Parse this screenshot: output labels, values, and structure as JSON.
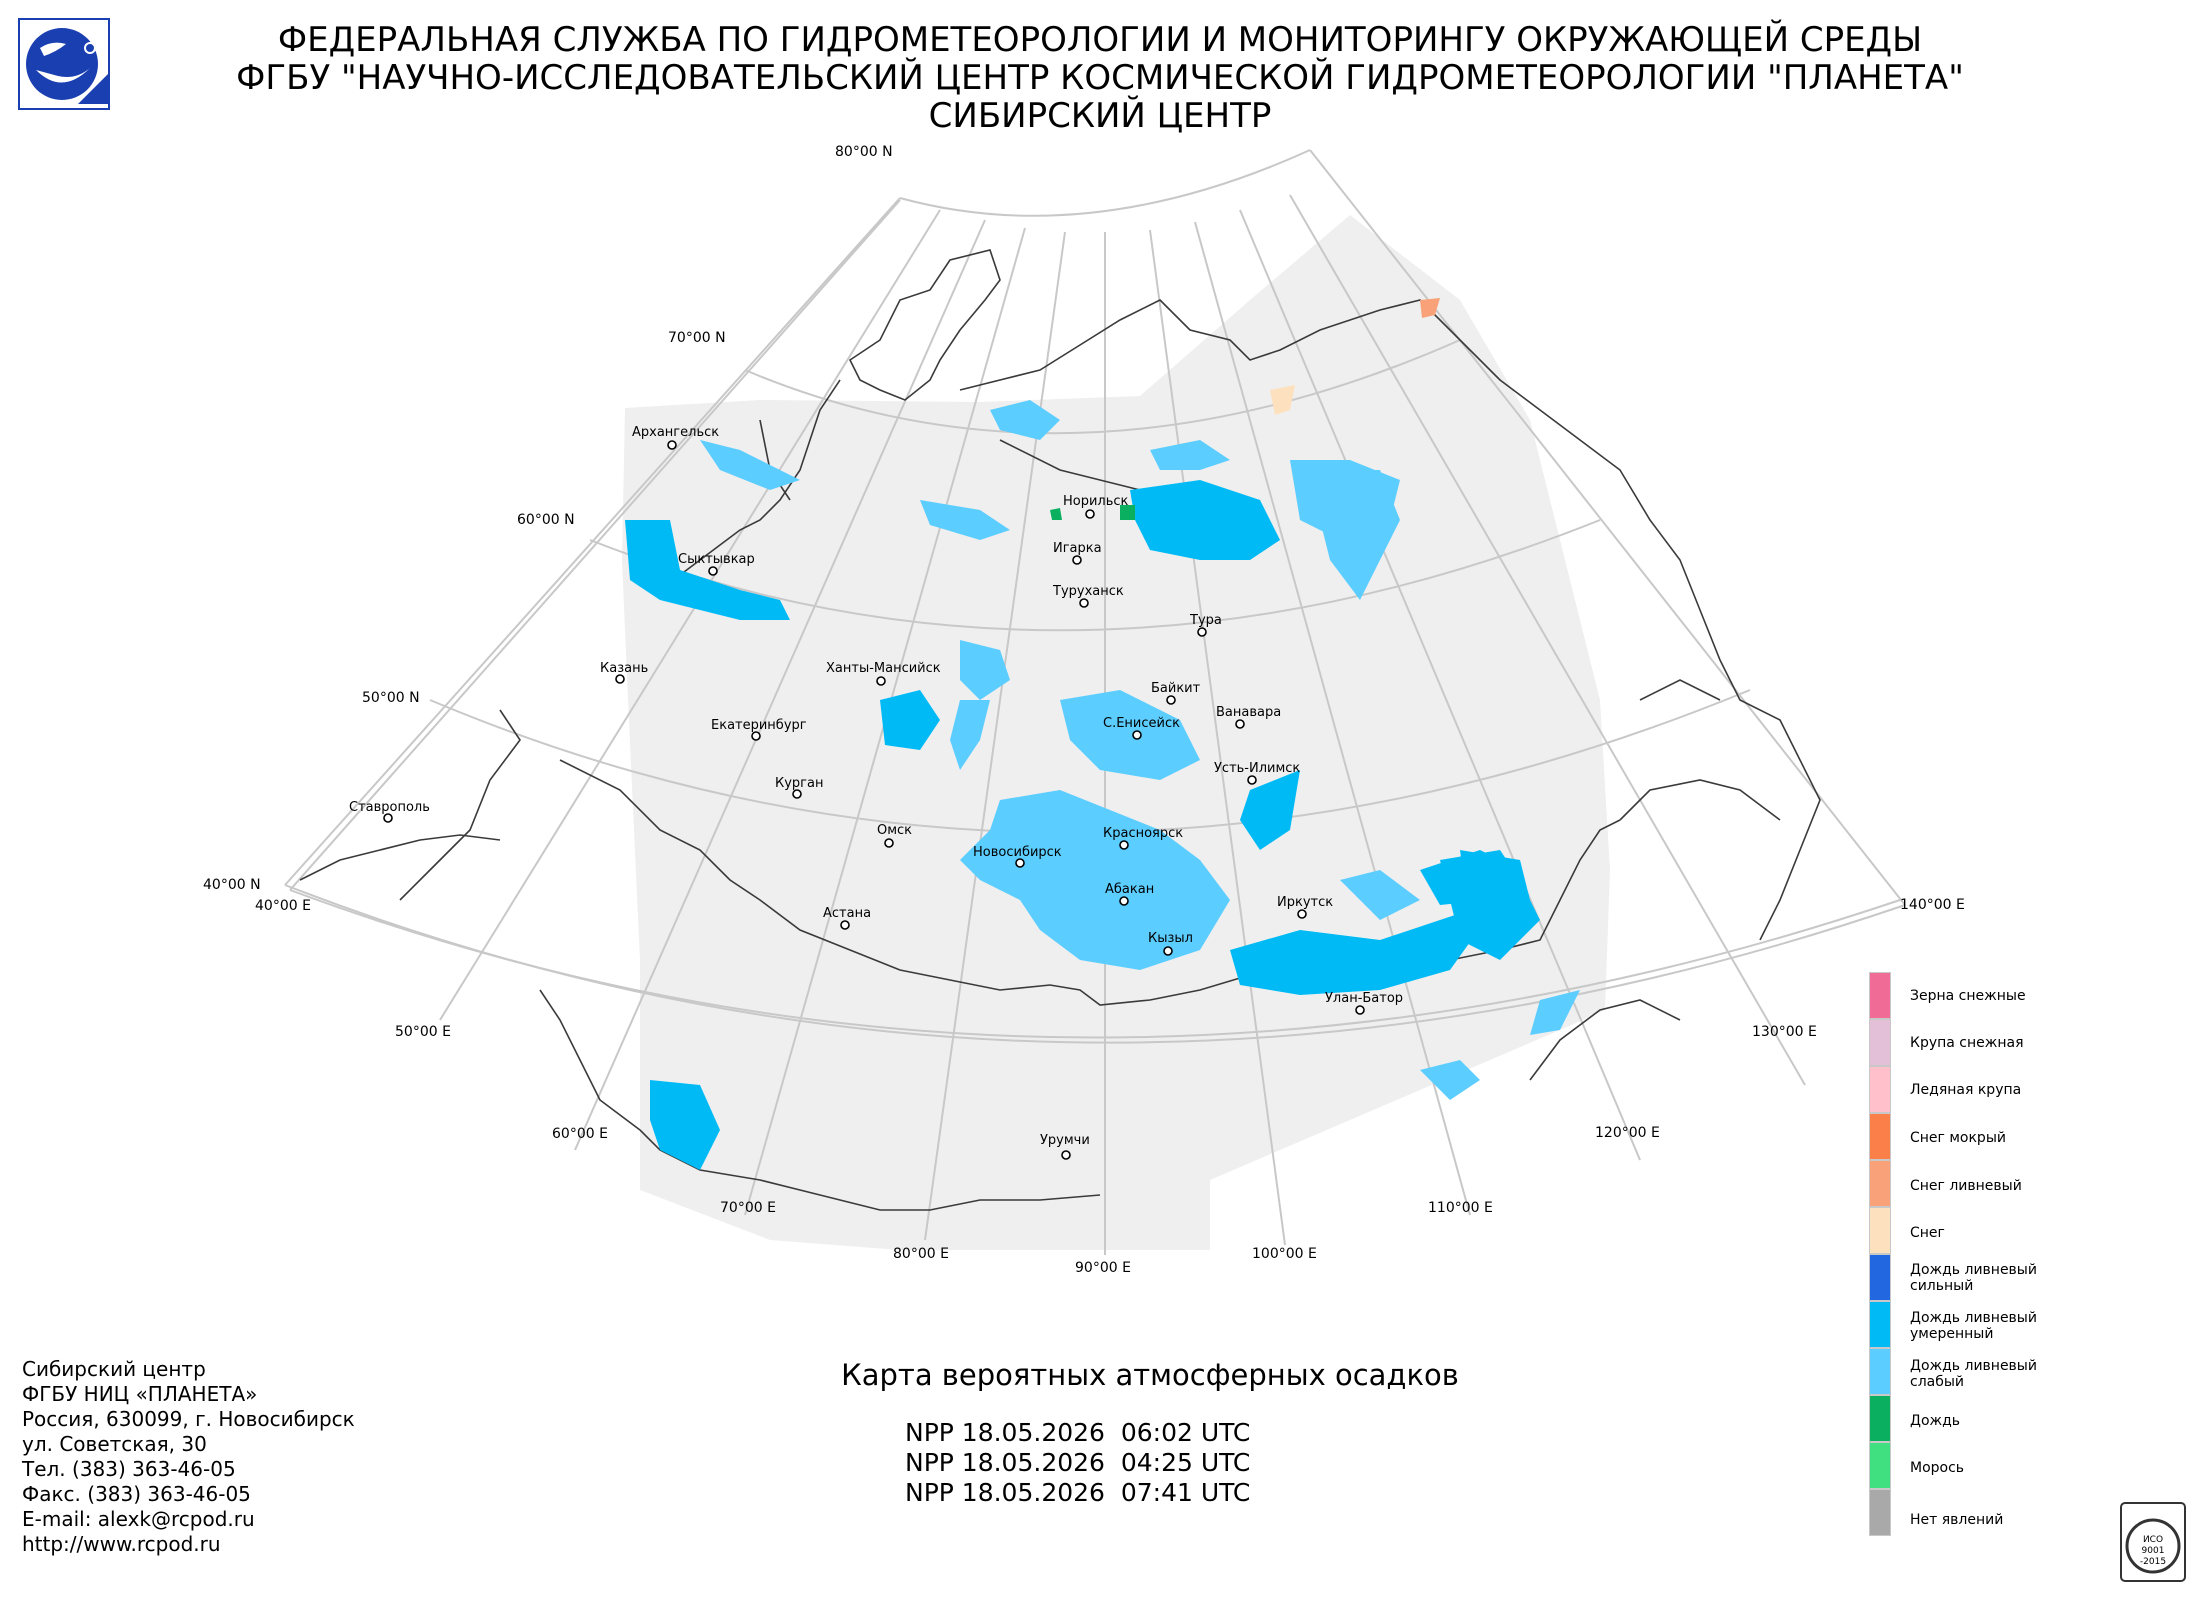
{
  "header": {
    "line1": "ФЕДЕРАЛЬНАЯ СЛУЖБА ПО ГИДРОМЕТЕОРОЛОГИИ И МОНИТОРИНГУ ОКРУЖАЮЩЕЙ СРЕДЫ",
    "line2": "ФГБУ \"НАУЧНО-ИССЛЕДОВАТЕЛЬСКИЙ ЦЕНТР КОСМИЧЕСКОЙ ГИДРОМЕТЕОРОЛОГИИ \"ПЛАНЕТА\"",
    "line3": "СИБИРСКИЙ ЦЕНТР"
  },
  "logo_icon": "planeta-satellite-logo-icon",
  "grid_labels": {
    "lat80": "80°00 N",
    "lat70": "70°00 N",
    "lat60": "60°00 N",
    "lat50": "50°00 N",
    "lat40": "40°00 N",
    "lon40": "40°00 E",
    "lon50": "50°00 E",
    "lon60": "60°00 E",
    "lon70": "70°00 E",
    "lon80": "80°00 E",
    "lon90": "90°00 E",
    "lon100": "100°00 E",
    "lon110": "110°00 E",
    "lon120": "120°00 E",
    "lon130": "130°00 E",
    "lon140": "140°00 E"
  },
  "cities": {
    "arkhangelsk": "Архангельск",
    "syktyvkar": "Сыктывкар",
    "kazan": "Казань",
    "khanty": "Ханты-Мансийск",
    "ekaterinburg": "Екатеринбург",
    "kurgan": "Курган",
    "stavropol": "Ставрополь",
    "omsk": "Омск",
    "astana": "Астана",
    "novosibirsk": "Новосибирск",
    "krasnoyarsk": "Красноярск",
    "abakan": "Абакан",
    "kyzyl": "Кызыл",
    "norilsk": "Норильск",
    "igarka": "Игарка",
    "turukhansk": "Туруханск",
    "tura": "Тура",
    "baykit": "Байкит",
    "vanavara": "Ванавара",
    "s_eniseysk": "С.Енисейск",
    "ust_ilimsk": "Усть-Илимск",
    "irkutsk": "Иркутск",
    "ulan_bator": "Улан-Батор",
    "urumqi": "Урумчи"
  },
  "legend": [
    {
      "label": "Зерна снежные",
      "color": "#f06b96"
    },
    {
      "label": "Крупа снежная",
      "color": "#e3bfd8"
    },
    {
      "label": "Ледяная крупа",
      "color": "#ffc0cc"
    },
    {
      "label": "Снег мокрый",
      "color": "#fb7f48"
    },
    {
      "label": "Снег ливневый",
      "color": "#f9a27a"
    },
    {
      "label": "Снег",
      "color": "#fde0be"
    },
    {
      "label": "Дождь ливневый сильный",
      "color": "#2266e0"
    },
    {
      "label": "Дождь ливневый умеренный",
      "color": "#00baf6"
    },
    {
      "label": "Дождь ливневый слабый",
      "color": "#5ccdff"
    },
    {
      "label": "Дождь",
      "color": "#0ab060"
    },
    {
      "label": "Морось",
      "color": "#40e080"
    },
    {
      "label": "Нет явлений",
      "color": "#a9a9a9"
    }
  ],
  "map_title": "Карта вероятных атмосферных осадков",
  "passes": [
    "NPP 18.05.2026  06:02 UTC",
    "NPP 18.05.2026  04:25 UTC",
    "NPP 18.05.2026  07:41 UTC"
  ],
  "footer": [
    "Сибирский центр",
    "ФГБУ НИЦ «ПЛАНЕТА»",
    "Россия, 630099, г. Новосибирск",
    "ул. Советская, 30",
    "Тел. (383) 363-46-05",
    "Факс. (383) 363-46-05",
    "E-mail: alexk@rcpod.ru",
    "http://www.rcpod.ru"
  ],
  "iso_badge": {
    "text": "ИСО 9001 -2015",
    "icon": "iso-certificate-icon"
  },
  "colors": {
    "coverage": "#efefef",
    "grid": "#c8c8c8",
    "coast": "#3a3a3a",
    "precip_light": "#5ccdff",
    "precip_moderate": "#00baf6",
    "rain": "#0ab060",
    "snow": "#fde0be",
    "snow_shower": "#f9a27a"
  }
}
